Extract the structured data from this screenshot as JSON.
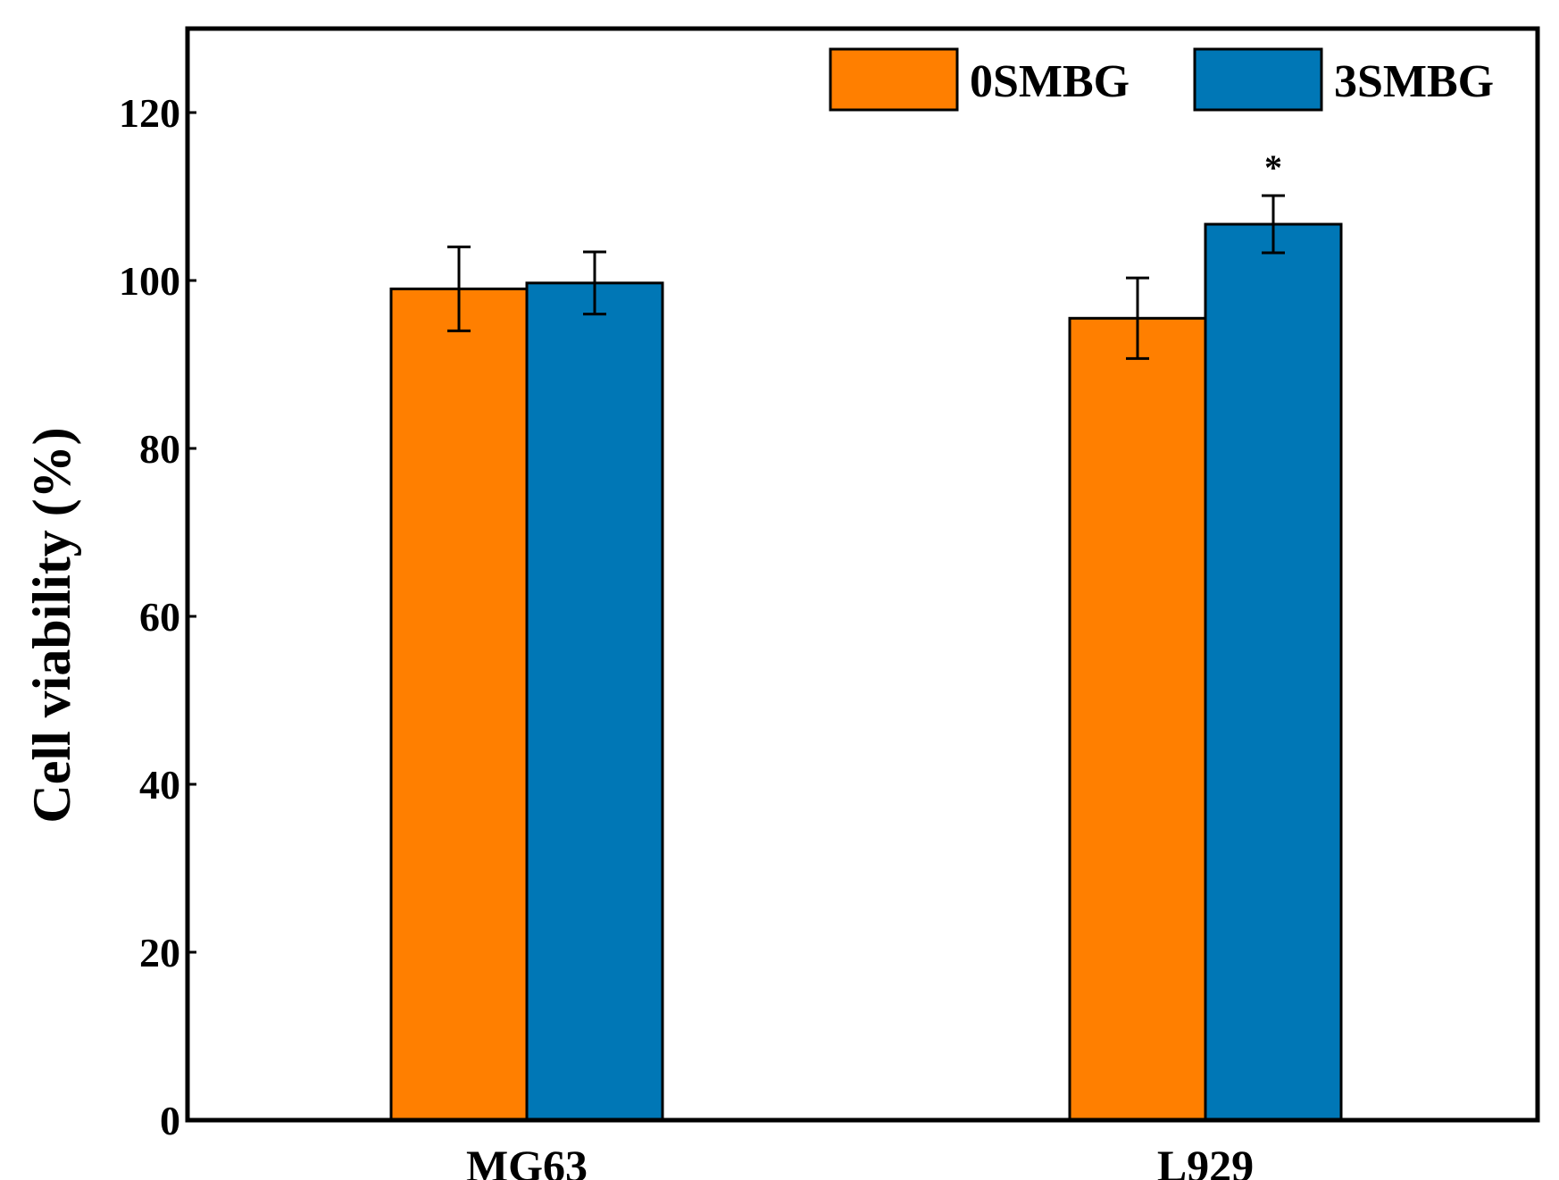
{
  "chart_data": {
    "type": "bar",
    "title": "",
    "xlabel": "",
    "ylabel": "Cell viability (%)",
    "ylim": [
      0,
      130
    ],
    "yticks": [
      "0",
      "20",
      "40",
      "60",
      "80",
      "100",
      "120"
    ],
    "categories": [
      "MG63",
      "L929"
    ],
    "series": [
      {
        "name": "0SMBG",
        "color": "#ff7f00",
        "values": [
          99,
          95.5
        ],
        "errors": [
          5,
          4.8
        ],
        "annotations": [
          "",
          ""
        ]
      },
      {
        "name": "3SMBG",
        "color": "#0077b6",
        "values": [
          99.7,
          106.7
        ],
        "errors": [
          3.7,
          3.4
        ],
        "annotations": [
          "",
          "*"
        ]
      }
    ],
    "legend_position": "top-right",
    "grid": false
  }
}
